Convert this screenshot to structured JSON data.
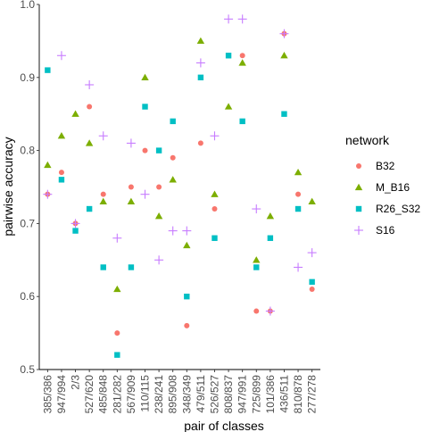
{
  "chart_data": {
    "type": "scatter",
    "xlabel": "pair of classes",
    "ylabel": "pairwise accuracy",
    "ylim": [
      0.5,
      1.0
    ],
    "y_ticks": [
      "0.5",
      "0.6",
      "0.7",
      "0.8",
      "0.9",
      "1.0"
    ],
    "grid": false,
    "legend_position": "right",
    "legend_title": "network",
    "categories": [
      "385/386",
      "947/994",
      "2/3",
      "527/620",
      "485/848",
      "281/282",
      "567/909",
      "110/115",
      "238/241",
      "895/908",
      "348/349",
      "479/511",
      "526/527",
      "808/837",
      "947/991",
      "725/899",
      "101/386",
      "436/511",
      "810/878",
      "277/278"
    ],
    "series": [
      {
        "name": "B32",
        "color": "#F8766D",
        "marker": "circle",
        "values": [
          0.74,
          0.77,
          0.7,
          0.86,
          0.74,
          0.55,
          0.75,
          0.8,
          0.75,
          0.79,
          0.56,
          0.81,
          0.72,
          0.93,
          0.93,
          0.58,
          0.58,
          0.96,
          0.74,
          0.61
        ]
      },
      {
        "name": "M_B16",
        "color": "#7CAE00",
        "marker": "triangle",
        "values": [
          0.78,
          0.82,
          0.85,
          0.81,
          0.73,
          0.61,
          0.73,
          0.9,
          0.71,
          0.76,
          0.67,
          0.95,
          0.74,
          0.86,
          0.92,
          0.65,
          0.71,
          0.93,
          0.77,
          0.73
        ]
      },
      {
        "name": "R26_S32",
        "color": "#00BFC4",
        "marker": "square",
        "values": [
          0.91,
          0.76,
          0.69,
          0.72,
          0.64,
          0.52,
          0.64,
          0.86,
          0.8,
          0.84,
          0.6,
          0.9,
          0.68,
          0.93,
          0.84,
          0.64,
          0.68,
          0.85,
          0.72,
          0.62
        ]
      },
      {
        "name": "S16",
        "color": "#C77CFF",
        "marker": "plus",
        "values": [
          0.74,
          0.93,
          0.7,
          0.89,
          0.82,
          0.68,
          0.81,
          0.74,
          0.65,
          0.69,
          0.69,
          0.92,
          0.82,
          0.98,
          0.98,
          0.72,
          0.58,
          0.96,
          0.64,
          0.66
        ]
      }
    ]
  }
}
